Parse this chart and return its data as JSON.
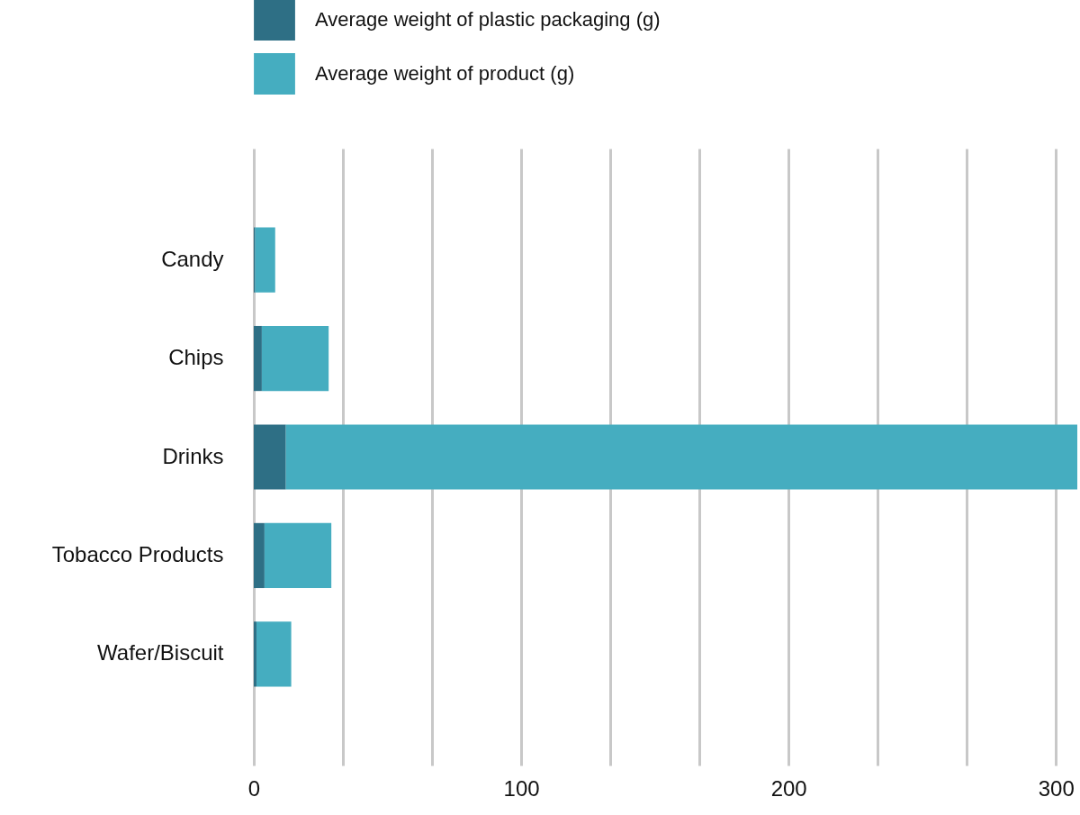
{
  "chart_data": {
    "type": "bar",
    "orientation": "horizontal",
    "stacked": true,
    "categories": [
      "Candy",
      "Chips",
      "Drinks",
      "Tobacco Products",
      "Wafer/Biscuit"
    ],
    "series": [
      {
        "name": "Average weight of plastic packaging (g)",
        "color": "#2e6f85",
        "values": [
          0.5,
          3,
          12,
          4,
          1
        ]
      },
      {
        "name": "Average weight of product (g)",
        "color": "#45adc0",
        "values": [
          7.5,
          25,
          296,
          25,
          13
        ]
      }
    ],
    "xlim": [
      0,
      308
    ],
    "xticks": [
      0,
      {
        "value": 33.33,
        "label": null
      },
      {
        "value": 66.67,
        "label": null
      },
      100,
      {
        "value": 133.33,
        "label": null
      },
      {
        "value": 166.67,
        "label": null
      },
      200,
      {
        "value": 233.33,
        "label": null
      },
      {
        "value": 266.67,
        "label": null
      },
      300
    ],
    "grid": "x",
    "legend": "top"
  }
}
